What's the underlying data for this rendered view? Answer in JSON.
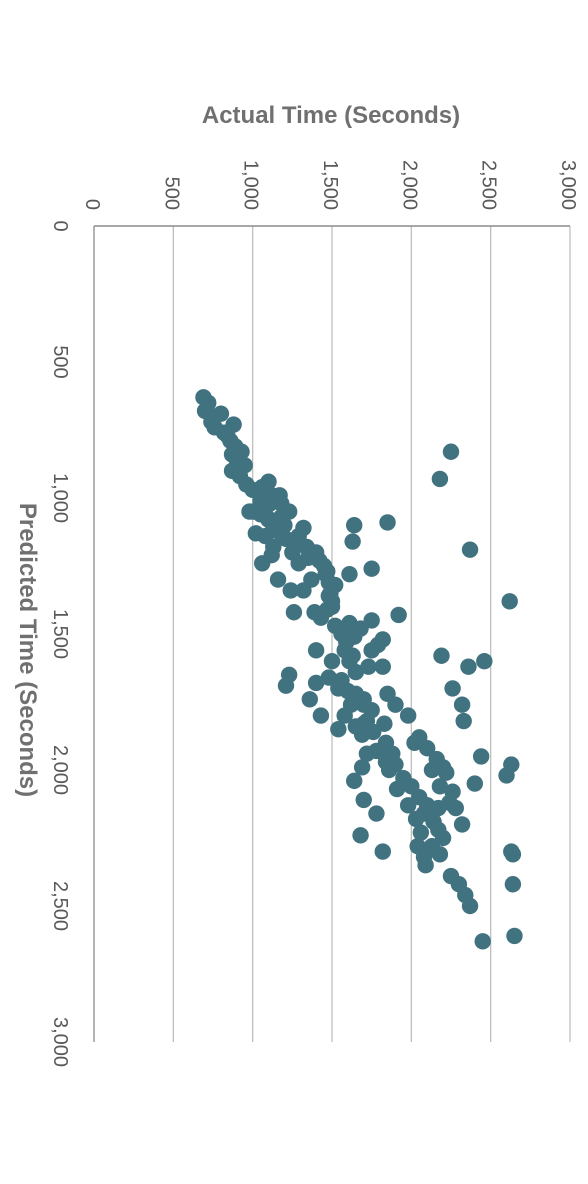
{
  "chart_data": {
    "type": "scatter",
    "title": "",
    "xlabel": "Predicted Time (Seconds)",
    "ylabel": "Actual Time (Seconds)",
    "xlim": [
      0,
      3000
    ],
    "ylim": [
      0,
      3000
    ],
    "x_ticks": [
      "0",
      "500",
      "1,000",
      "1,500",
      "2,000",
      "2,500",
      "3,000"
    ],
    "y_ticks": [
      "0",
      "500",
      "1,000",
      "1,500",
      "2,000",
      "2,500",
      "3,000"
    ],
    "grid": "major gridlines on actual-time axis",
    "orientation": "rotated 90 degrees clockwise",
    "marker_color": "#41727F",
    "gridline_color": "#BFBFBF",
    "axis_line_color": "#8C8C8C",
    "points": [
      [
        630,
        690
      ],
      [
        650,
        720
      ],
      [
        680,
        700
      ],
      [
        700,
        750
      ],
      [
        720,
        740
      ],
      [
        690,
        800
      ],
      [
        740,
        760
      ],
      [
        760,
        820
      ],
      [
        730,
        880
      ],
      [
        770,
        840
      ],
      [
        790,
        860
      ],
      [
        810,
        890
      ],
      [
        840,
        870
      ],
      [
        830,
        930
      ],
      [
        860,
        910
      ],
      [
        880,
        900
      ],
      [
        880,
        950
      ],
      [
        900,
        870
      ],
      [
        920,
        920
      ],
      [
        950,
        960
      ],
      [
        970,
        1000
      ],
      [
        980,
        1040
      ],
      [
        1000,
        1080
      ],
      [
        1020,
        1110
      ],
      [
        960,
        1060
      ],
      [
        940,
        1100
      ],
      [
        990,
        1120
      ],
      [
        1010,
        1140
      ],
      [
        1030,
        1070
      ],
      [
        1050,
        1000
      ],
      [
        1060,
        1050
      ],
      [
        1080,
        1100
      ],
      [
        1100,
        1130
      ],
      [
        1120,
        1150
      ],
      [
        1130,
        1180
      ],
      [
        1150,
        1210
      ],
      [
        1160,
        1250
      ],
      [
        1140,
        1290
      ],
      [
        1170,
        1300
      ],
      [
        1180,
        1340
      ],
      [
        1200,
        1400
      ],
      [
        1230,
        1420
      ],
      [
        1250,
        1450
      ],
      [
        1270,
        1470
      ],
      [
        1310,
        1480
      ],
      [
        1350,
        1490
      ],
      [
        1380,
        1500
      ],
      [
        1410,
        1470
      ],
      [
        1440,
        1430
      ],
      [
        1470,
        1520
      ],
      [
        1490,
        1560
      ],
      [
        1510,
        1640
      ],
      [
        1530,
        1590
      ],
      [
        1560,
        1580
      ],
      [
        1600,
        1610
      ],
      [
        1640,
        1650
      ],
      [
        1670,
        1560
      ],
      [
        1710,
        1600
      ],
      [
        1740,
        1700
      ],
      [
        1780,
        1750
      ],
      [
        1820,
        1720
      ],
      [
        1860,
        1760
      ],
      [
        1900,
        1840
      ],
      [
        1940,
        1880
      ],
      [
        1980,
        1900
      ],
      [
        2000,
        1860
      ],
      [
        2030,
        1950
      ],
      [
        2060,
        2000
      ],
      [
        2100,
        2050
      ],
      [
        2130,
        2100
      ],
      [
        2160,
        2080
      ],
      [
        2190,
        2140
      ],
      [
        2220,
        2170
      ],
      [
        2250,
        2200
      ],
      [
        2280,
        2130
      ],
      [
        2310,
        2180
      ],
      [
        2350,
        2090
      ],
      [
        2390,
        2250
      ],
      [
        2420,
        2300
      ],
      [
        2460,
        2340
      ],
      [
        2500,
        2370
      ],
      [
        1320,
        1520
      ],
      [
        1280,
        1460
      ],
      [
        1420,
        1390
      ],
      [
        1480,
        1680
      ],
      [
        1560,
        1750
      ],
      [
        1620,
        1820
      ],
      [
        1720,
        1850
      ],
      [
        1760,
        1900
      ],
      [
        1800,
        1980
      ],
      [
        1880,
        2050
      ],
      [
        1920,
        2100
      ],
      [
        1960,
        2160
      ],
      [
        2010,
        2220
      ],
      [
        2080,
        2260
      ],
      [
        2140,
        2280
      ],
      [
        2200,
        2320
      ],
      [
        2050,
        2400
      ],
      [
        1950,
        2440
      ],
      [
        1380,
        2620
      ],
      [
        1600,
        2460
      ],
      [
        1820,
        2330
      ],
      [
        1990,
        2200
      ],
      [
        1260,
        1750
      ],
      [
        1160,
        1630
      ],
      [
        1100,
        1640
      ],
      [
        1090,
        1850
      ],
      [
        930,
        2180
      ],
      [
        830,
        2250
      ],
      [
        1190,
        2370
      ],
      [
        1980,
        2630
      ],
      [
        2020,
        2600
      ],
      [
        2300,
        2630
      ],
      [
        2310,
        2640
      ],
      [
        2420,
        2640
      ],
      [
        2610,
        2650
      ],
      [
        2630,
        2450
      ],
      [
        1430,
        1920
      ],
      [
        1580,
        2190
      ],
      [
        1620,
        2360
      ],
      [
        1700,
        2260
      ],
      [
        1760,
        2320
      ],
      [
        1830,
        1830
      ],
      [
        2070,
        1910
      ],
      [
        1990,
        1690
      ],
      [
        1850,
        1540
      ],
      [
        1720,
        1650
      ],
      [
        1620,
        1730
      ],
      [
        1500,
        1560
      ],
      [
        1200,
        1250
      ],
      [
        1220,
        1350
      ],
      [
        1240,
        1290
      ],
      [
        1340,
        1320
      ],
      [
        1460,
        1610
      ],
      [
        1660,
        1480
      ],
      [
        1690,
        1210
      ],
      [
        1760,
        1700
      ],
      [
        1900,
        2020
      ],
      [
        2040,
        1640
      ],
      [
        2110,
        1700
      ],
      [
        2160,
        1780
      ],
      [
        2240,
        1680
      ],
      [
        2300,
        1820
      ],
      [
        2060,
        2180
      ],
      [
        2120,
        2240
      ],
      [
        1050,
        1230
      ],
      [
        1070,
        1180
      ],
      [
        1110,
        1320
      ],
      [
        1180,
        1130
      ],
      [
        1280,
        1610
      ],
      [
        1300,
        1370
      ],
      [
        1360,
        1480
      ],
      [
        1400,
        1500
      ],
      [
        1450,
        1750
      ],
      [
        1520,
        1820
      ],
      [
        1540,
        1790
      ],
      [
        1580,
        1630
      ],
      [
        1650,
        1230
      ],
      [
        1680,
        1400
      ],
      [
        1740,
        1360
      ],
      [
        1800,
        1430
      ],
      [
        1840,
        1650
      ],
      [
        1870,
        1690
      ],
      [
        1930,
        1780
      ],
      [
        2000,
        2130
      ],
      [
        2140,
        2170
      ],
      [
        2180,
        2030
      ],
      [
        2230,
        2060
      ],
      [
        1210,
        1120
      ],
      [
        1240,
        1060
      ],
      [
        1130,
        1020
      ],
      [
        1050,
        980
      ],
      [
        1010,
        1050
      ],
      [
        1100,
        1200
      ],
      [
        1020,
        1180
      ],
      [
        1070,
        1090
      ],
      [
        990,
        1170
      ],
      [
        1140,
        1080
      ],
      [
        1300,
        1160
      ],
      [
        1340,
        1240
      ],
      [
        1420,
        1260
      ],
      [
        1560,
        1400
      ],
      [
        1600,
        1500
      ],
      [
        1700,
        1540
      ],
      [
        1760,
        1620
      ],
      [
        1800,
        1580
      ],
      [
        1830,
        1700
      ],
      [
        1940,
        1720
      ],
      [
        1970,
        1840
      ],
      [
        2130,
        1980
      ],
      [
        2280,
        2040
      ],
      [
        2320,
        2080
      ]
    ]
  }
}
